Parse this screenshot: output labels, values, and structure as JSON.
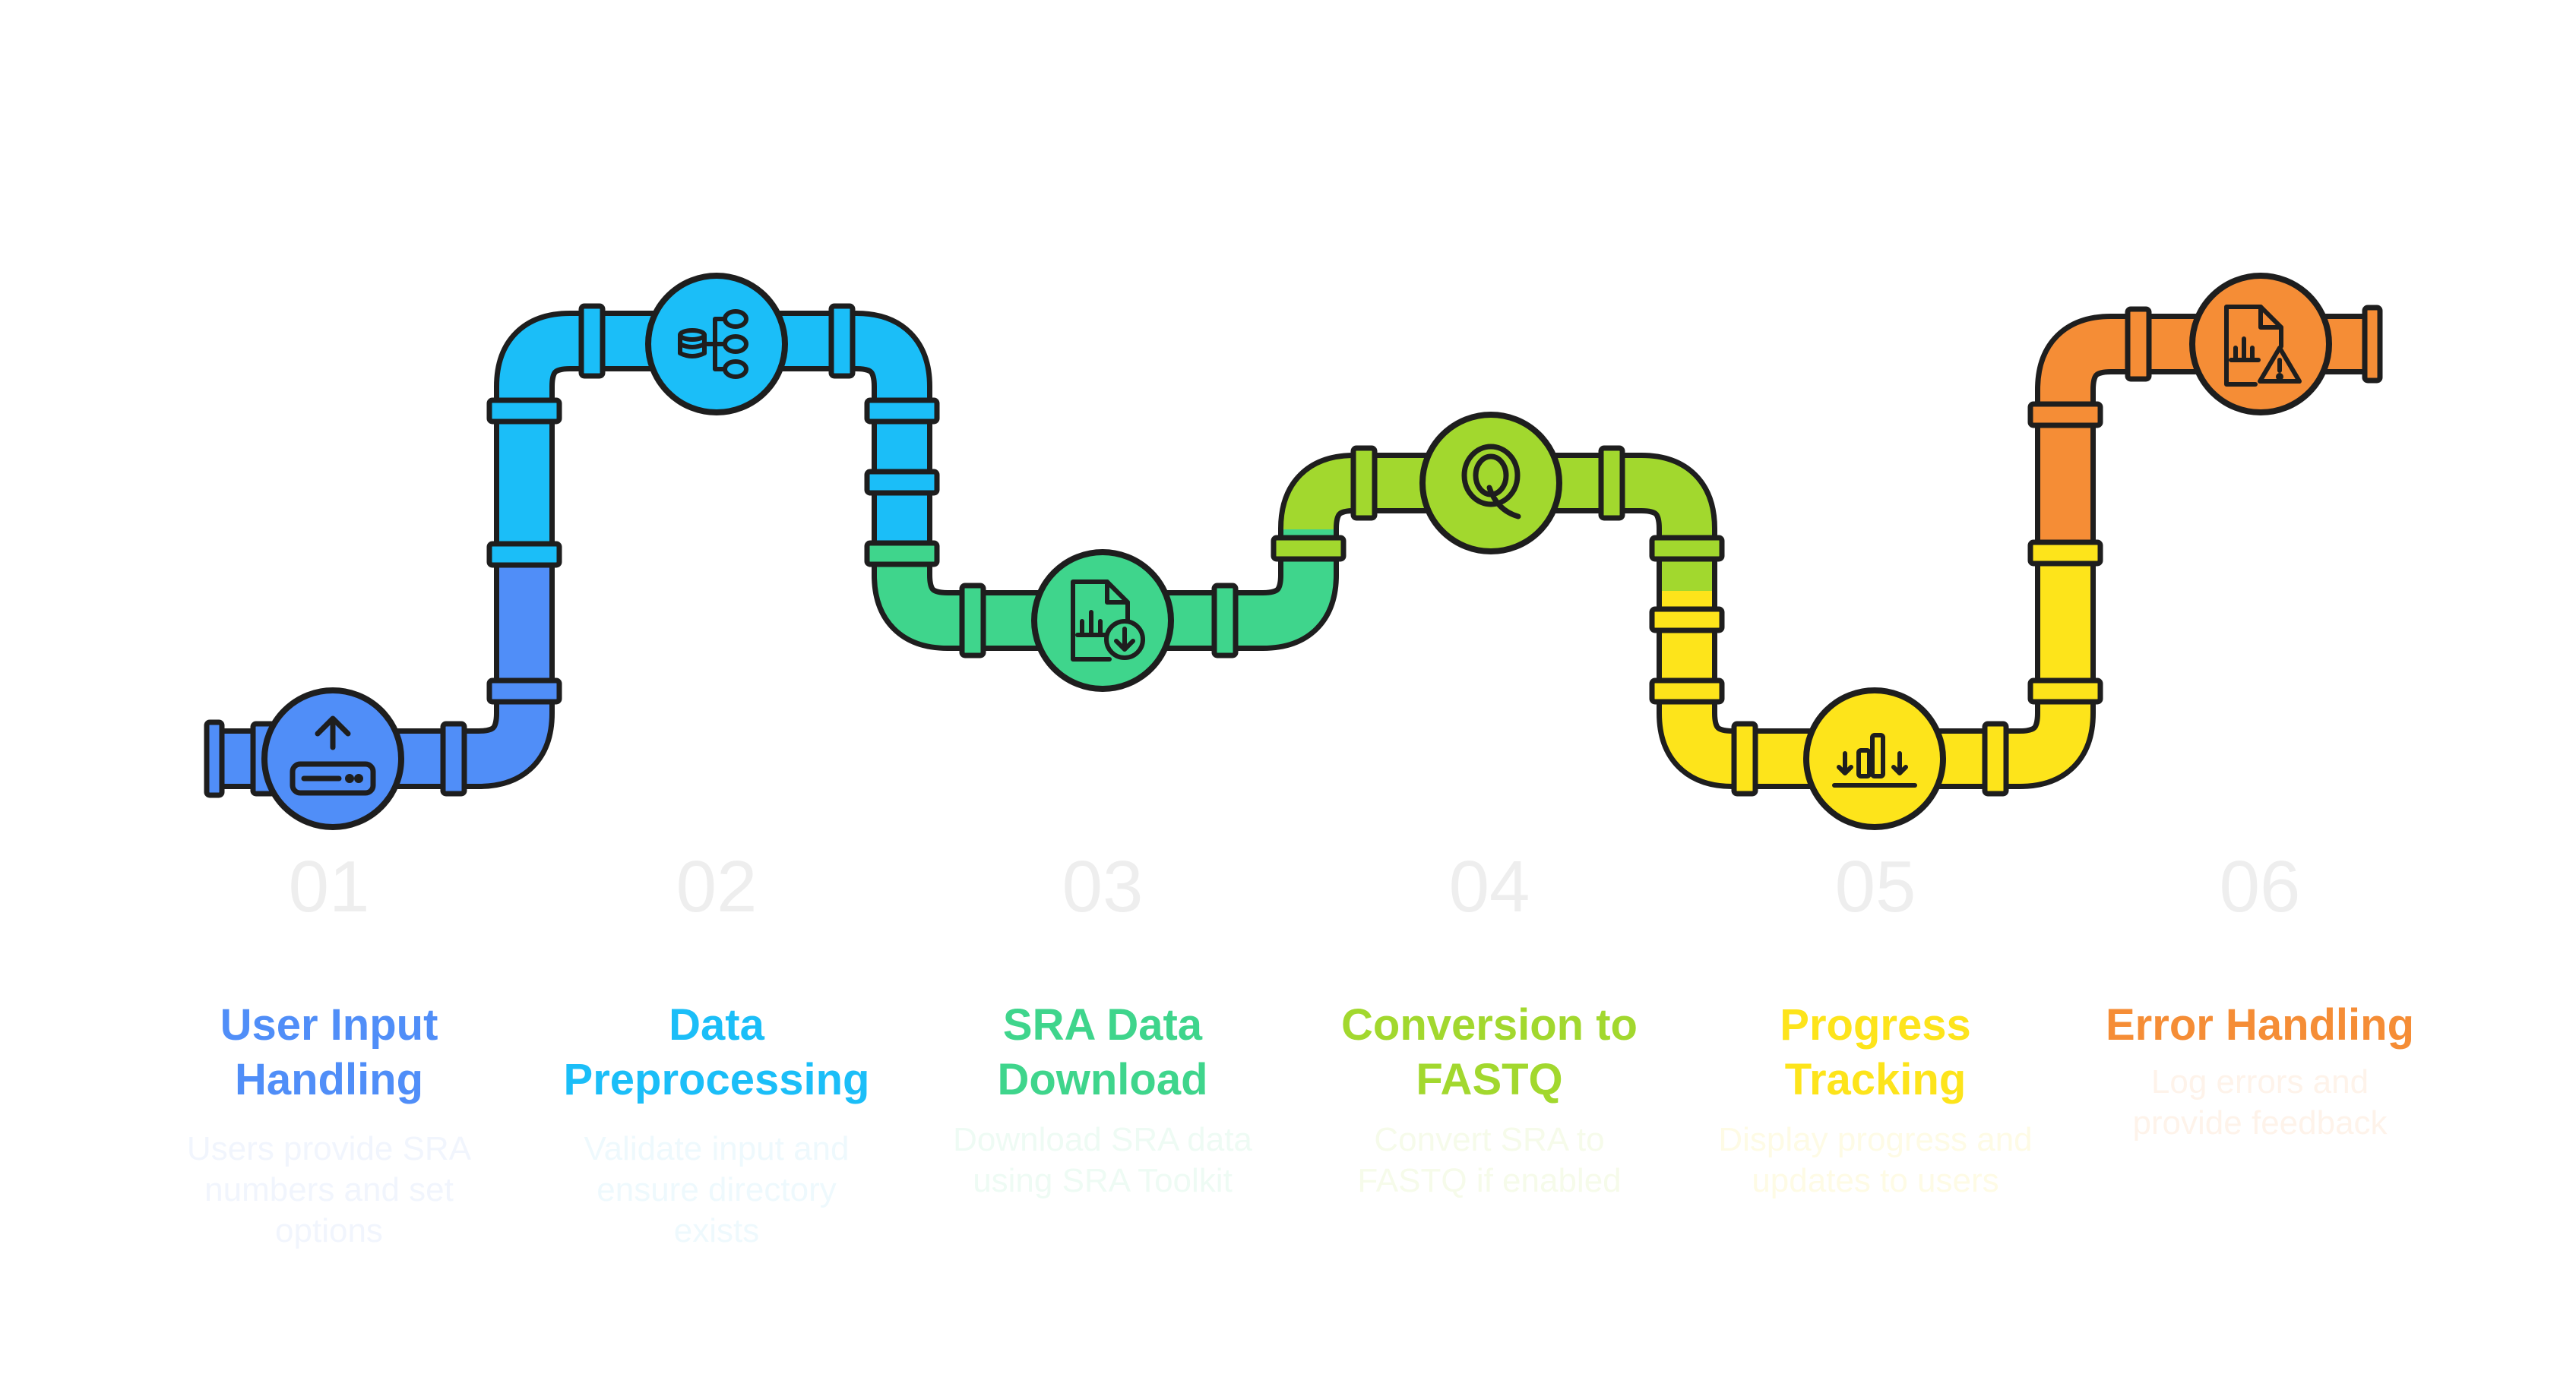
{
  "steps": [
    {
      "number": "01",
      "title_lines": [
        "User Input",
        "Handling"
      ],
      "desc_lines": [
        "Users provide SRA",
        "numbers and set",
        "options"
      ],
      "color": "#508ef8",
      "desc_color": "#f1f5fd",
      "icon": "upload-icon"
    },
    {
      "number": "02",
      "title_lines": [
        "Data",
        "Preprocessing"
      ],
      "desc_lines": [
        "Validate input and",
        "ensure directory",
        "exists"
      ],
      "color": "#1bbef8",
      "desc_color": "#eef9fd",
      "icon": "database-tree-icon"
    },
    {
      "number": "03",
      "title_lines": [
        "SRA Data",
        "Download"
      ],
      "desc_lines": [
        "Download SRA data",
        "using SRA Toolkit"
      ],
      "color": "#3fd58c",
      "desc_color": "#eefbf4",
      "icon": "file-download-icon"
    },
    {
      "number": "04",
      "title_lines": [
        "Conversion to",
        "FASTQ"
      ],
      "desc_lines": [
        "Convert SRA to",
        "FASTQ if enabled"
      ],
      "color": "#a2d82e",
      "desc_color": "#f6fbea",
      "icon": "q-letter-icon"
    },
    {
      "number": "05",
      "title_lines": [
        "Progress",
        "Tracking"
      ],
      "desc_lines": [
        "Display progress and",
        "updates to users"
      ],
      "color": "#fde41b",
      "desc_color": "#fefbe5",
      "icon": "bar-progress-icon"
    },
    {
      "number": "06",
      "title_lines": [
        "Error Handling"
      ],
      "desc_lines": [
        "Log errors and",
        "provide feedback"
      ],
      "color": "#f58d36",
      "desc_color": "#fef3ea",
      "icon": "report-warning-icon"
    }
  ]
}
